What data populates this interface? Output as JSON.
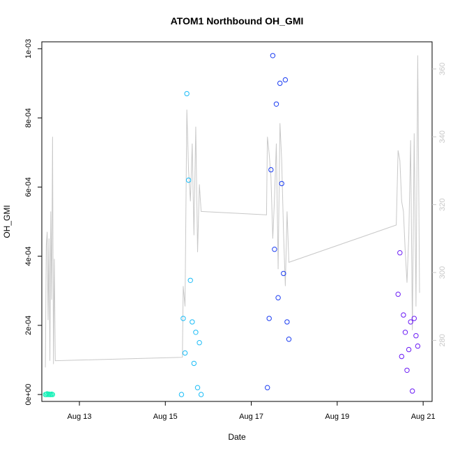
{
  "chart_data": {
    "type": "scatter",
    "title": "ATOM1 Northbound OH_GMI",
    "xlabel": "Date",
    "ylabel": "OH_GMI",
    "xlim": [
      "2019-08-12T03:00",
      "2019-08-21T05:00"
    ],
    "ylim": [
      -2e-05,
      0.00102
    ],
    "y2lim": [
      262,
      368
    ],
    "x_ticks": [
      {
        "value": "2019-08-13T00:00",
        "label": "Aug 13"
      },
      {
        "value": "2019-08-15T00:00",
        "label": "Aug 15"
      },
      {
        "value": "2019-08-17T00:00",
        "label": "Aug 17"
      },
      {
        "value": "2019-08-19T00:00",
        "label": "Aug 19"
      },
      {
        "value": "2019-08-21T00:00",
        "label": "Aug 21"
      }
    ],
    "y_ticks": [
      {
        "value": 0.0,
        "label": "0e+00"
      },
      {
        "value": 0.0002,
        "label": "2e-04"
      },
      {
        "value": 0.0004,
        "label": "4e-04"
      },
      {
        "value": 0.0006,
        "label": "6e-04"
      },
      {
        "value": 0.0008,
        "label": "8e-04"
      },
      {
        "value": 0.001,
        "label": "1e-03"
      }
    ],
    "y2_ticks": [
      {
        "value": 280,
        "label": "280"
      },
      {
        "value": 300,
        "label": "300"
      },
      {
        "value": 320,
        "label": "320"
      },
      {
        "value": 340,
        "label": "340"
      },
      {
        "value": 360,
        "label": "360"
      }
    ],
    "grid": false,
    "colors": {
      "flight1": "#16f2b8",
      "flight2": "#1abcf7",
      "flight3": "#1a3cf2",
      "flight4": "#6a1af5",
      "secondary_line": "#c8c8c8"
    },
    "series": [
      {
        "x": [
          "2019-08-12T05:00",
          "2019-08-12T05:30",
          "2019-08-12T06:00",
          "2019-08-12T06:30",
          "2019-08-12T07:00",
          "2019-08-12T07:30",
          "2019-08-12T08:00",
          "2019-08-12T08:30",
          "2019-08-12T09:00"
        ],
        "y": [
          0.0,
          0.0,
          2e-06,
          0.0,
          1e-06,
          0.0,
          0.0,
          1e-06,
          0.0
        ]
      },
      {
        "x": [
          "2019-08-15T09:00",
          "2019-08-15T10:00",
          "2019-08-15T11:00",
          "2019-08-15T12:00",
          "2019-08-15T13:00",
          "2019-08-15T14:00",
          "2019-08-15T15:00",
          "2019-08-15T16:00",
          "2019-08-15T17:00",
          "2019-08-15T18:00",
          "2019-08-15T19:00",
          "2019-08-15T20:00"
        ],
        "y": [
          0.0,
          0.00022,
          0.00012,
          0.00087,
          0.00062,
          0.00033,
          0.00021,
          9e-05,
          0.00018,
          2e-05,
          0.00015,
          0.0
        ]
      },
      {
        "x": [
          "2019-08-17T09:00",
          "2019-08-17T10:00",
          "2019-08-17T11:00",
          "2019-08-17T12:00",
          "2019-08-17T13:00",
          "2019-08-17T14:00",
          "2019-08-17T15:00",
          "2019-08-17T16:00",
          "2019-08-17T17:00",
          "2019-08-17T18:00",
          "2019-08-17T19:00",
          "2019-08-17T20:00",
          "2019-08-17T21:00"
        ],
        "y": [
          2e-05,
          0.00022,
          0.00065,
          0.00098,
          0.00042,
          0.00084,
          0.00028,
          0.0009,
          0.00061,
          0.00035,
          0.00091,
          0.00021,
          0.00016
        ]
      },
      {
        "x": [
          "2019-08-20T10:00",
          "2019-08-20T11:00",
          "2019-08-20T12:00",
          "2019-08-20T13:00",
          "2019-08-20T14:00",
          "2019-08-20T15:00",
          "2019-08-20T16:00",
          "2019-08-20T17:00",
          "2019-08-20T18:00",
          "2019-08-20T19:00",
          "2019-08-20T20:00",
          "2019-08-20T21:00"
        ],
        "y": [
          0.00029,
          0.00041,
          0.00011,
          0.00023,
          0.00018,
          7e-05,
          0.00013,
          0.00021,
          1e-05,
          0.00022,
          0.00017,
          0.00014
        ]
      }
    ],
    "secondary_series": {
      "x": [
        "2019-08-12T05:00",
        "2019-08-12T05:30",
        "2019-08-12T06:00",
        "2019-08-12T06:30",
        "2019-08-12T07:00",
        "2019-08-12T07:30",
        "2019-08-12T08:00",
        "2019-08-12T08:30",
        "2019-08-12T09:00",
        "2019-08-12T09:30",
        "2019-08-12T10:00",
        "2019-08-12T10:30",
        "2019-08-15T09:30",
        "2019-08-15T10:00",
        "2019-08-15T11:00",
        "2019-08-15T12:00",
        "2019-08-15T13:00",
        "2019-08-15T14:00",
        "2019-08-15T15:00",
        "2019-08-15T16:00",
        "2019-08-15T17:00",
        "2019-08-15T18:00",
        "2019-08-15T19:00",
        "2019-08-15T20:00",
        "2019-08-17T08:30",
        "2019-08-17T09:00",
        "2019-08-17T10:00",
        "2019-08-17T11:00",
        "2019-08-17T12:00",
        "2019-08-17T13:00",
        "2019-08-17T14:00",
        "2019-08-17T15:00",
        "2019-08-17T16:00",
        "2019-08-17T17:00",
        "2019-08-17T18:00",
        "2019-08-17T19:00",
        "2019-08-17T20:00",
        "2019-08-17T21:00",
        "2019-08-20T09:00",
        "2019-08-20T10:00",
        "2019-08-20T11:00",
        "2019-08-20T12:00",
        "2019-08-20T13:00",
        "2019-08-20T14:00",
        "2019-08-20T15:00",
        "2019-08-20T16:00",
        "2019-08-20T17:00",
        "2019-08-20T18:00",
        "2019-08-20T19:00",
        "2019-08-20T20:00",
        "2019-08-20T21:00",
        "2019-08-20T22:00"
      ],
      "y": [
        272,
        308,
        312,
        286,
        310,
        274,
        318,
        292,
        340,
        273,
        304,
        274,
        275,
        296,
        290,
        348,
        330,
        321,
        338,
        311,
        343,
        306,
        326,
        318,
        317,
        340,
        335,
        328,
        310,
        322,
        338,
        301,
        344,
        333,
        312,
        296,
        318,
        303,
        314,
        336,
        333,
        321,
        318,
        306,
        297,
        311,
        339,
        283,
        341,
        290,
        364,
        294
      ]
    }
  }
}
